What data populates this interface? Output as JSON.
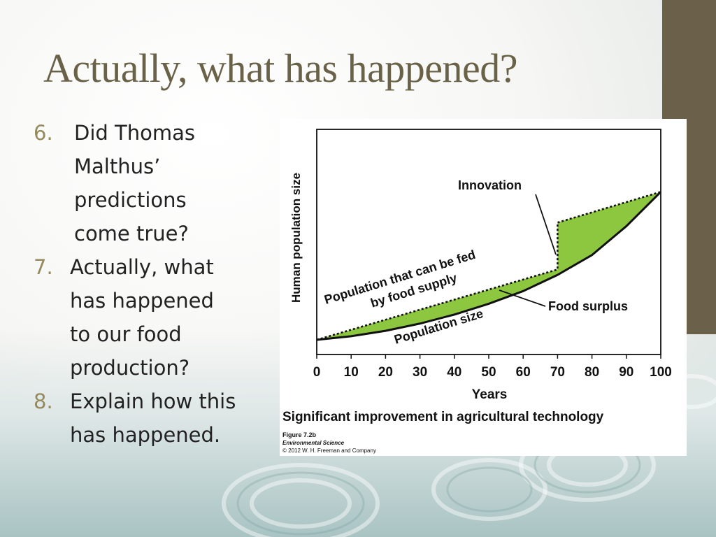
{
  "slide": {
    "title": "Actually, what has happened?"
  },
  "questions": [
    {
      "number": "6.",
      "text": "Did Thomas Malthus’ predictions come true?"
    },
    {
      "number": "7.",
      "text": "Actually, what has happened to our food production?"
    },
    {
      "number": "8.",
      "text": "Explain how this has happened."
    }
  ],
  "colors": {
    "title": "#6a6248",
    "numbering": "#948a5e",
    "surplus_fill": "#8dc63f",
    "accent_bar": "#6b604a"
  },
  "chart_data": {
    "type": "line",
    "title": "Significant improvement in agricultural technology",
    "xlabel": "Years",
    "ylabel": "Human population size",
    "x_ticks": [
      "0",
      "10",
      "20",
      "30",
      "40",
      "50",
      "60",
      "70",
      "80",
      "90",
      "100"
    ],
    "xlim": [
      0,
      100
    ],
    "y_ticks_shown": false,
    "grid": false,
    "series": [
      {
        "name": "Population that can be fed by food supply",
        "style": "dotted",
        "x": [
          0,
          70,
          70,
          100
        ],
        "y": [
          0.0,
          0.39,
          0.65,
          0.82
        ]
      },
      {
        "name": "Population size",
        "style": "solid",
        "x": [
          0,
          10,
          20,
          30,
          40,
          50,
          60,
          70,
          80,
          90,
          100
        ],
        "y": [
          0.0,
          0.02,
          0.05,
          0.09,
          0.14,
          0.2,
          0.27,
          0.36,
          0.47,
          0.63,
          0.82
        ]
      }
    ],
    "annotations": [
      {
        "text": "Innovation",
        "x": 70
      },
      {
        "text": "Food surplus"
      }
    ],
    "caption": {
      "figure": "Figure 7.2b",
      "book": "Environmental Science",
      "copyright": "© 2012 W. H. Freeman and Company"
    }
  }
}
